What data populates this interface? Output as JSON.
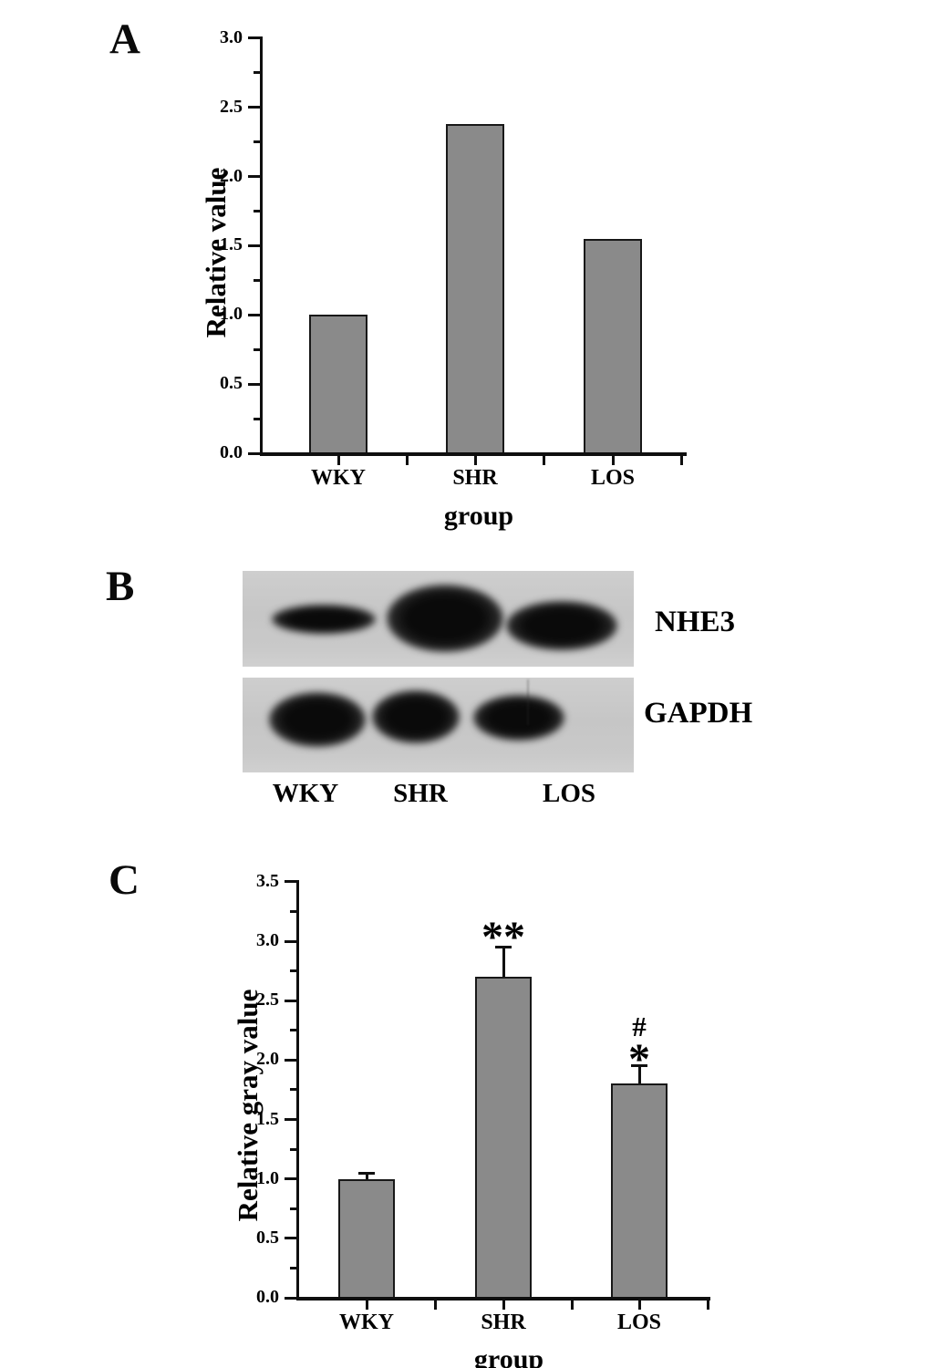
{
  "figure": {
    "panel_a_label": "A",
    "panel_b_label": "B",
    "panel_c_label": "C"
  },
  "chart_data": [
    {
      "id": "panel-a",
      "type": "bar",
      "title": "",
      "categories": [
        "WKY",
        "SHR",
        "LOS"
      ],
      "values": [
        1.0,
        2.38,
        1.55
      ],
      "xlabel": "group",
      "ylabel": "Relative value",
      "ylim": [
        0.0,
        3.0
      ],
      "ytick_interval": 0.5,
      "yticklabels": [
        "0.0",
        "0.5",
        "1.0",
        "1.5",
        "2.0",
        "2.5",
        "3.0"
      ],
      "minor_ticks": true,
      "grid": false,
      "legend": "none",
      "bar_color": "#8a8a8a",
      "axis_color": "#0f0f0f"
    },
    {
      "id": "panel-c",
      "type": "bar",
      "title": "",
      "categories": [
        "WKY",
        "SHR",
        "LOS"
      ],
      "values": [
        1.0,
        2.7,
        1.8
      ],
      "errors_plus": [
        0.05,
        0.25,
        0.15
      ],
      "annotations": [
        [],
        [
          "**"
        ],
        [
          "#",
          "*"
        ]
      ],
      "xlabel": "group",
      "ylabel": "Relative gray value",
      "ylim": [
        0.0,
        3.5
      ],
      "ytick_interval": 0.5,
      "yticklabels": [
        "0.0",
        "0.5",
        "1.0",
        "1.5",
        "2.0",
        "2.5",
        "3.0",
        "3.5"
      ],
      "minor_ticks": true,
      "grid": false,
      "legend": "none",
      "bar_color": "#8a8a8a",
      "axis_color": "#0f0f0f"
    }
  ],
  "blot": {
    "lanes": [
      "WKY",
      "SHR",
      "LOS"
    ],
    "rows": [
      {
        "protein": "NHE3",
        "band_intensities": [
          "moderate",
          "very strong",
          "strong"
        ]
      },
      {
        "protein": "GAPDH",
        "band_intensities": [
          "strong",
          "strong",
          "moderate"
        ]
      }
    ]
  }
}
